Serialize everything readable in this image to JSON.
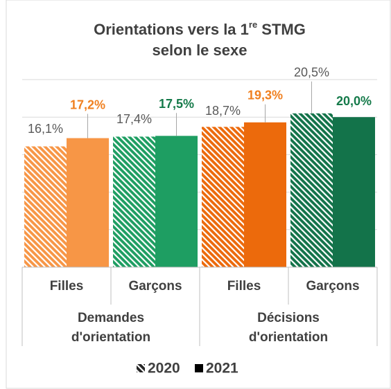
{
  "chart_data": {
    "type": "bar",
    "title": {
      "main": "Orientations vers la 1",
      "sup": "re",
      "rest": " STMG",
      "line2": "selon le sexe"
    },
    "categories": [
      "Filles",
      "Garçons",
      "Filles",
      "Garçons"
    ],
    "groups": [
      {
        "label": [
          "Demandes",
          "d'orientation"
        ],
        "size": 2
      },
      {
        "label": [
          "Décisions",
          "d'orientation"
        ],
        "size": 2
      }
    ],
    "series": [
      {
        "name": "2020",
        "pattern": "hatched",
        "colors": [
          "#f79646",
          "#1e9e62",
          "#ec6a0c",
          "#13734a"
        ],
        "label_color": "#595959",
        "values": [
          16.1,
          17.4,
          18.7,
          20.5
        ],
        "value_labels": [
          "16,1%",
          "17,4%",
          "18,7%",
          "20,5%"
        ]
      },
      {
        "name": "2021",
        "pattern": "solid",
        "colors": [
          "#f79646",
          "#1e9e62",
          "#ec6a0c",
          "#13734a"
        ],
        "label_colors": [
          "#f08020",
          "#157a4a",
          "#f08020",
          "#157a4a"
        ],
        "values": [
          17.2,
          17.5,
          19.3,
          20.0
        ],
        "value_labels": [
          "17,2%",
          "17,5%",
          "19,3%",
          "20,0%"
        ]
      }
    ],
    "ylim": [
      0,
      25
    ],
    "yticks": [
      0,
      5,
      10,
      15,
      20,
      25
    ],
    "grid": true,
    "legend": "bottom"
  }
}
